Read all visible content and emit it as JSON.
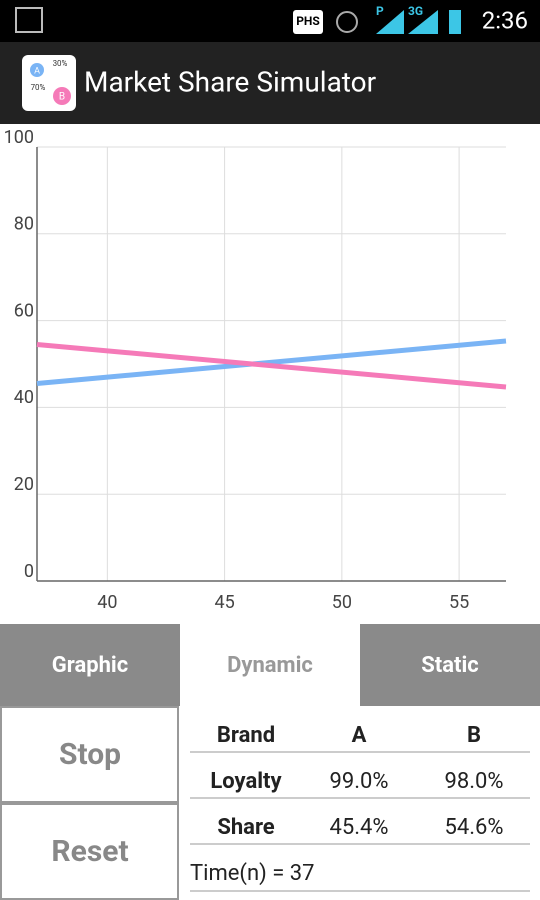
{
  "status_bar": {
    "network": "PHS",
    "signal_1": "P",
    "signal_2": "3G",
    "time": "2:36"
  },
  "app_bar": {
    "icon": {
      "a": "A",
      "b": "B",
      "a_share": "30%",
      "b_share": "70%"
    },
    "title": "Market Share Simulator"
  },
  "chart_data": {
    "type": "line",
    "x": [
      37,
      57
    ],
    "xlim": [
      37,
      57
    ],
    "xticks": [
      40,
      45,
      50,
      55
    ],
    "ylim": [
      0,
      100
    ],
    "yticks": [
      0,
      20,
      40,
      60,
      80,
      100
    ],
    "grid": true,
    "series": [
      {
        "color": "#7ab4f5",
        "values": [
          45.5,
          55.3
        ]
      },
      {
        "color": "#f57ab8",
        "values": [
          54.5,
          44.7
        ]
      }
    ]
  },
  "tabs": {
    "items": [
      "Graphic",
      "Dynamic",
      "Static"
    ],
    "selected": 1
  },
  "buttons": [
    "Stop",
    "Reset"
  ],
  "table": {
    "rows": [
      [
        "Brand",
        "A",
        "B"
      ],
      [
        "Loyalty",
        "99.0%",
        "98.0%"
      ],
      [
        "Share",
        "45.4%",
        "54.6%"
      ]
    ],
    "footer": "Time(n) = 37"
  }
}
